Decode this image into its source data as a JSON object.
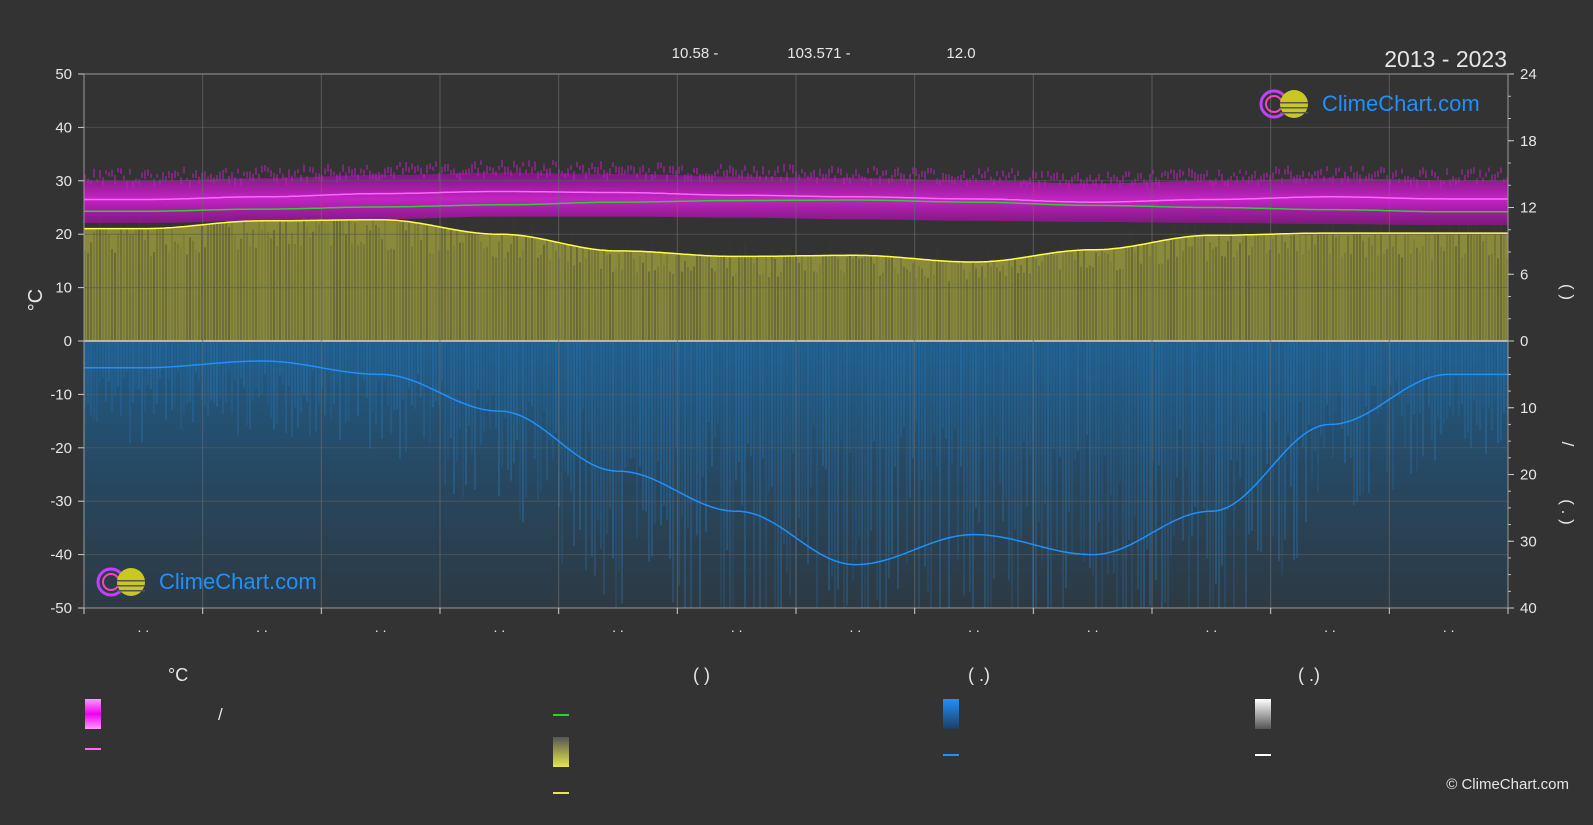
{
  "header": {
    "coords": [
      "10.58 -",
      "103.571 -",
      "12.0"
    ],
    "years": "2013 - 2023"
  },
  "brand": {
    "name": "ClimeChart.com",
    "copyright": "© ClimeChart.com"
  },
  "colors": {
    "background": "#333333",
    "tmax": "#ff66ff",
    "tmean": "#33cc33",
    "sunshine": "#e6e64d",
    "precip": "#1e90ff",
    "text": "#e6e6e6",
    "grid": "#5a5a5a"
  },
  "chart_data": {
    "type": "area",
    "months": 12,
    "x_tick_labels": [
      ". .",
      ". .",
      ". .",
      ". .",
      ". .",
      ". .",
      ". .",
      ". .",
      ". .",
      ". .",
      ". .",
      ". ."
    ],
    "left_axis": {
      "label": "°C",
      "ylim": [
        -50,
        50
      ],
      "ticks": [
        50,
        40,
        30,
        20,
        10,
        0,
        -10,
        -20,
        -30,
        -40,
        -50
      ]
    },
    "right_axis_upper": {
      "label": "(     )",
      "ylim": [
        0,
        24
      ],
      "ticks": [
        24,
        18,
        12,
        6,
        0
      ]
    },
    "right_axis_lower": {
      "label": "(  .  )",
      "ylim": [
        0,
        40
      ],
      "ticks": [
        0,
        10,
        20,
        30,
        40
      ]
    },
    "right_axis_mid_label": "/",
    "series": [
      {
        "key": "tmax_line",
        "values": [
          26.5,
          27.0,
          27.6,
          28.0,
          27.8,
          27.3,
          27.0,
          26.6,
          26.0,
          26.5,
          27.0,
          26.6
        ]
      },
      {
        "key": "tmin_band",
        "values": [
          24.6,
          25.0,
          25.3,
          25.8,
          25.8,
          25.6,
          25.3,
          25.0,
          24.8,
          24.6,
          24.4,
          24.2
        ]
      },
      {
        "key": "tmean_line",
        "values": [
          24.3,
          24.7,
          25.1,
          25.5,
          26.0,
          26.3,
          26.4,
          26.0,
          25.4,
          25.0,
          24.6,
          24.2
        ]
      },
      {
        "key": "sunshine_hours",
        "values": [
          10.1,
          10.8,
          10.9,
          9.6,
          8.1,
          7.6,
          7.7,
          7.1,
          8.2,
          9.5,
          9.7,
          9.7
        ]
      },
      {
        "key": "precip_mm",
        "values": [
          4.0,
          3.0,
          5.0,
          10.5,
          19.5,
          25.5,
          33.5,
          29.0,
          32.0,
          25.5,
          12.5,
          5.0
        ]
      }
    ],
    "grid": true
  },
  "legend": {
    "col1": {
      "header": "°C",
      "items": [
        "/",
        ""
      ]
    },
    "col2": {
      "header": "(          )",
      "items": [
        "",
        "",
        ""
      ]
    },
    "col3": {
      "header": "(   .)",
      "items": [
        "",
        ""
      ]
    },
    "col4": {
      "header": "(   .)",
      "items": [
        "",
        ""
      ]
    }
  }
}
